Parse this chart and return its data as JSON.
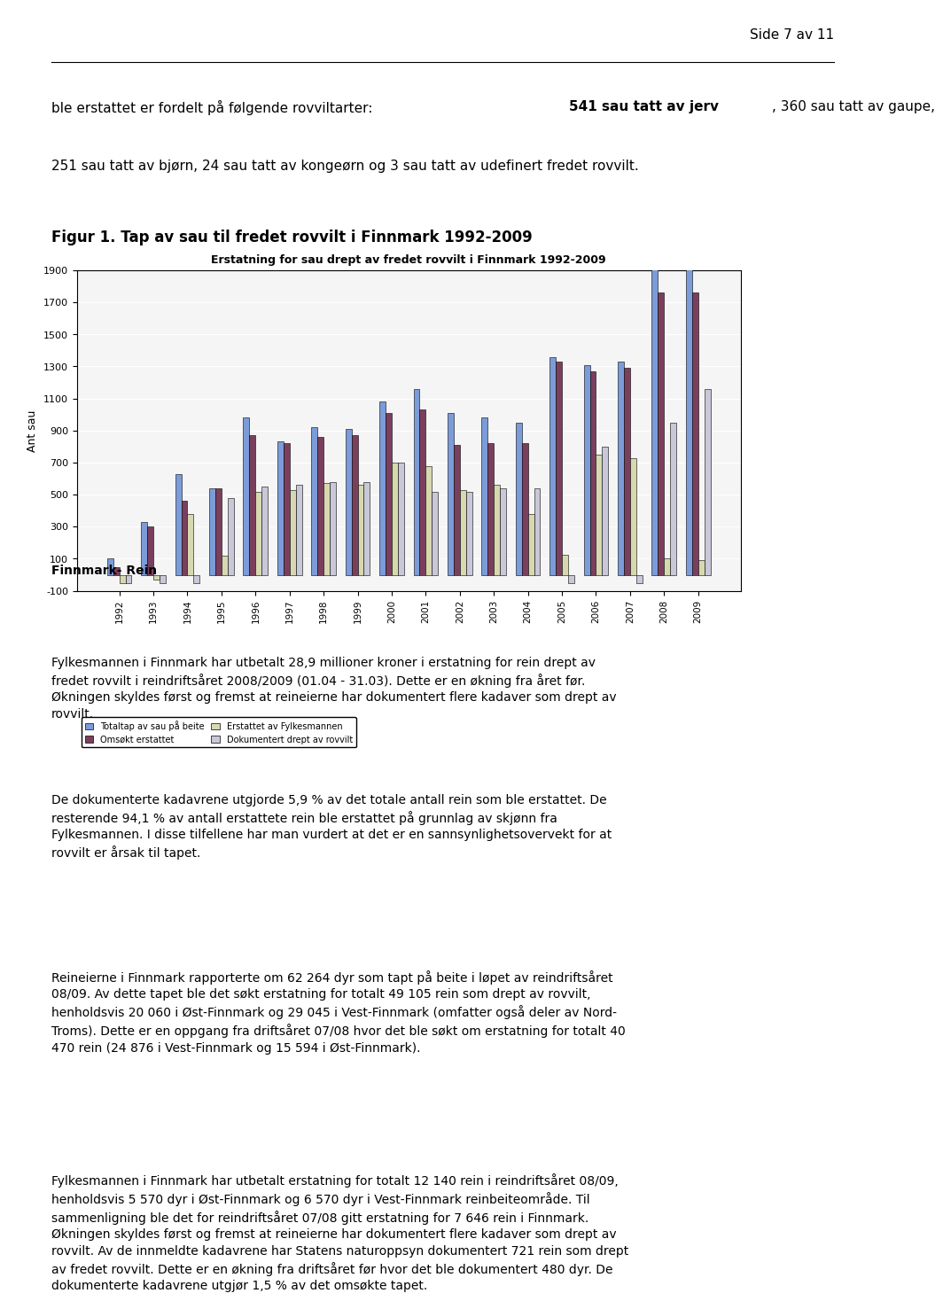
{
  "title": "Erstatning for sau drept av fredet rovvilt i Finnmark 1992-2009",
  "figur_title": "Figur 1. Tap av sau til fredet rovvilt i Finnmark 1992-2009",
  "ylabel": "Ant sau",
  "years": [
    1992,
    1993,
    1994,
    1995,
    1996,
    1997,
    1998,
    1999,
    2000,
    2001,
    2002,
    2003,
    2004,
    2005,
    2006,
    2007,
    2008,
    2009
  ],
  "series": {
    "Totaltap av sau på beite": [
      100,
      330,
      630,
      540,
      980,
      830,
      920,
      910,
      1080,
      1160,
      1010,
      980,
      950,
      1360,
      1310,
      1330,
      1920,
      1930
    ],
    "Omsøkt erstattet": [
      50,
      300,
      460,
      540,
      870,
      820,
      860,
      870,
      1010,
      1030,
      810,
      820,
      820,
      1330,
      1270,
      1290,
      1760,
      1760
    ],
    "Erstattet av Fylkesmannen": [
      -50,
      -30,
      380,
      120,
      520,
      530,
      570,
      560,
      700,
      680,
      530,
      560,
      380,
      125,
      750,
      730,
      100,
      90
    ],
    "Dokumentert drept av rovvilt": [
      -50,
      -50,
      -50,
      480,
      550,
      560,
      580,
      580,
      700,
      520,
      520,
      540,
      540,
      -50,
      800,
      -50,
      950,
      1160
    ]
  },
  "colors": {
    "Totaltap av sau på beite": "#7b9cd9",
    "Omsøkt erstattet": "#7b3f5e",
    "Erstattet av Fylkesmannen": "#d8d8b0",
    "Dokumentert drept av rovvilt": "#c8c8d8"
  },
  "ylim": [
    -100,
    1900
  ],
  "yticks": [
    -100,
    100,
    300,
    500,
    700,
    900,
    1100,
    1300,
    1500,
    1700,
    1900
  ],
  "header_text": "ble erstattet er fordelt på følgende rovviltarter: {bold_start}541 sau tatt av jerv{bold_end}, 360 sau tatt av gaupe,\n251 sau tatt av bjørn, 24 sau tatt av kongeørn og 3 sau tatt av udefinert fredet rovvilt.",
  "page_header": "Side 7 av 11",
  "body_texts": [
    "Finnmark- Rein",
    "Fylkesmannen i Finnmark har utbetalt 28,9 millioner kroner i erstatning for rein drept av\nfredet rovvilt i reindriftsåret 2008/2009 (01.04 - 31.03). Dette er en økning fra året før.\nØkningen skyldes først og fremst at reineierne har dokumentert flere kadaver som drept av\nrovvilt.",
    "De dokumenterte kadavrene utgjorde 5,9 % av det totale antall rein som ble erstattet. De\nresterende 94,1 % av antall erstattete rein ble erstattet på grunnlag av skjønn fra\nFylkesmannen. I disse tilfellene har man vurdert at det er en sannsynlighetsovervekt for at\nrovvilt er årsak til tapet.",
    "Reineierne i Finnmark rapporterte om 62 264 dyr som tapt på beite i løpet av reindriftsåret\n08/09. Av dette tapet ble det søkt erstatning for totalt 49 105 rein som drept av rovvilt,\nhenholdsvis 20 060 i Øst-Finnmark og 29 045 i Vest-Finnmark (omfatter også deler av Nord-\nTroms). Dette er en oppgang fra driftsåret 07/08 hvor det ble søkt om erstatning for totalt 40\n470 rein (24 876 i Vest-Finnmark og 15 594 i Øst-Finnmark).",
    "Fylkesmannen i Finnmark har utbetalt erstatning for totalt 12 140 rein i reindriftsåret 08/09,\nhenholdsvis 5 570 dyr i Øst-Finnmark og 6 570 dyr i Vest-Finnmark reinbeiteområde. Til\nsammenligning ble det for reindriftsåret 07/08 gitt erstatning for 7 646 rein i Finnmark.\nØkningen skyldes først og fremst at reineierne har dokumentert flere kadaver som drept av\nrovvilt. Av de innmeldte kadavrene har Statens naturoppsyn dokumentert 721 rein som drept\nav fredet rovvilt. Dette er en økning fra driftsåret før hvor det ble dokumentert 480 dyr. De\ndokumenterte kadavrene utgjør 1,5 % av det omsøkte tapet."
  ]
}
